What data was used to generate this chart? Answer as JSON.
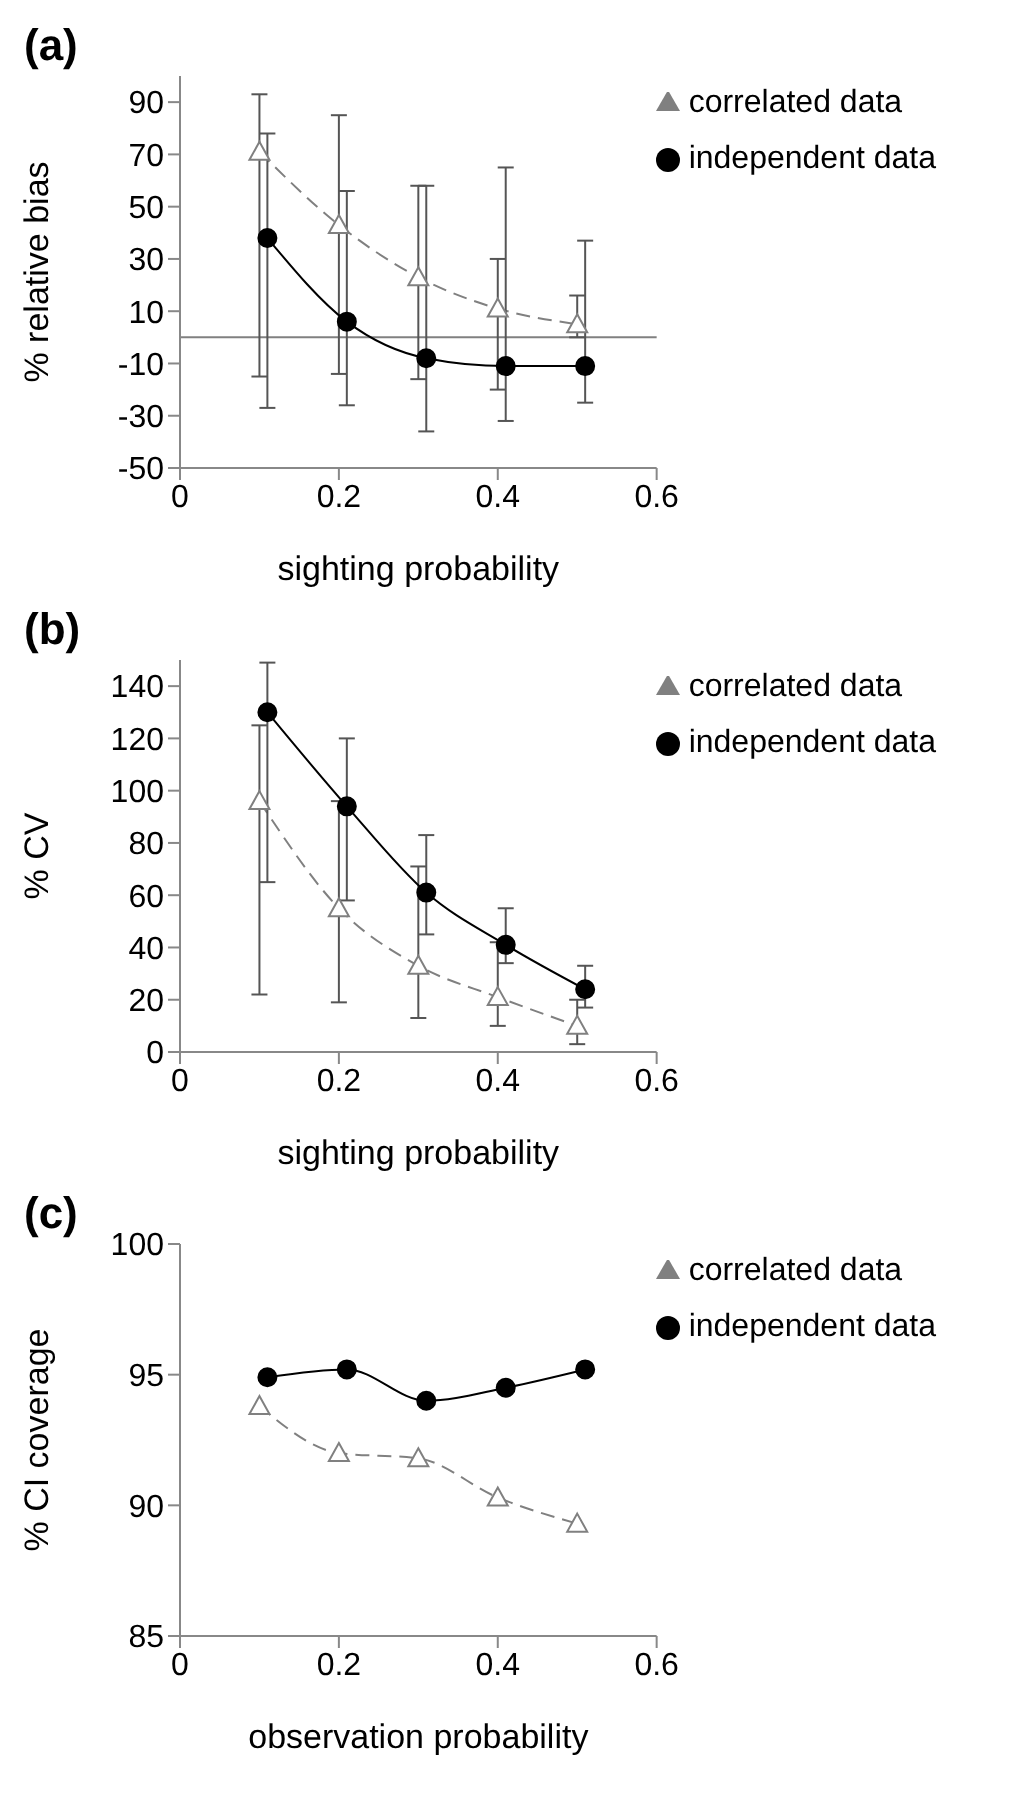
{
  "chart_data": [
    {
      "type": "line",
      "title": "(a)",
      "xlabel": "sighting probability",
      "ylabel": "% relative bias",
      "xlim": [
        0,
        0.6
      ],
      "xticks": [
        0,
        0.2,
        0.4,
        0.6
      ],
      "ylim": [
        -50,
        100
      ],
      "yticks": [
        -50,
        -30,
        -10,
        10,
        30,
        50,
        70,
        90
      ],
      "grid": false,
      "legend": "top right",
      "ref_lines": [
        {
          "axis": "y",
          "value": 0,
          "color": "#808080"
        }
      ],
      "series": [
        {
          "name": "correlated data",
          "color": "#808080",
          "marker": "triangle",
          "line_style": "dashed",
          "x": [
            0.1,
            0.2,
            0.3,
            0.4,
            0.5
          ],
          "values": [
            71,
            43,
            23,
            11,
            5
          ],
          "errors": [
            [
              -15,
              93
            ],
            [
              -14,
              85
            ],
            [
              -16,
              58
            ],
            [
              -20,
              30
            ],
            [
              0,
              16
            ]
          ]
        },
        {
          "name": "independent data",
          "color": "#000000",
          "marker": "circle",
          "line_style": "solid",
          "x": [
            0.11,
            0.21,
            0.31,
            0.41,
            0.51
          ],
          "values": [
            38,
            6,
            -8,
            -11,
            -11
          ],
          "errors": [
            [
              -27,
              78
            ],
            [
              -26,
              56
            ],
            [
              -36,
              58
            ],
            [
              -32,
              65
            ],
            [
              -25,
              37
            ]
          ]
        }
      ]
    },
    {
      "type": "line",
      "title": "(b)",
      "xlabel": "sighting probability",
      "ylabel": "% CV",
      "xlim": [
        0,
        0.6
      ],
      "xticks": [
        0,
        0.2,
        0.4,
        0.6
      ],
      "ylim": [
        0,
        150
      ],
      "yticks": [
        0,
        20,
        40,
        60,
        80,
        100,
        120,
        140
      ],
      "grid": false,
      "legend": "top right",
      "series": [
        {
          "name": "correlated data",
          "color": "#808080",
          "marker": "triangle",
          "line_style": "dashed",
          "x": [
            0.1,
            0.2,
            0.3,
            0.4,
            0.5
          ],
          "values": [
            96,
            55,
            33,
            21,
            10
          ],
          "errors": [
            [
              22,
              125
            ],
            [
              19,
              96
            ],
            [
              13,
              71
            ],
            [
              10,
              42
            ],
            [
              3,
              20
            ]
          ]
        },
        {
          "name": "independent data",
          "color": "#000000",
          "marker": "circle",
          "line_style": "solid",
          "x": [
            0.11,
            0.21,
            0.31,
            0.41,
            0.51
          ],
          "values": [
            130,
            94,
            61,
            41,
            24
          ],
          "errors": [
            [
              65,
              149
            ],
            [
              58,
              120
            ],
            [
              45,
              83
            ],
            [
              34,
              55
            ],
            [
              17,
              33
            ]
          ]
        }
      ]
    },
    {
      "type": "line",
      "title": "(c)",
      "xlabel": "observation probability",
      "ylabel": "% CI coverage",
      "xlim": [
        0,
        0.6
      ],
      "xticks": [
        0,
        0.2,
        0.4,
        0.6
      ],
      "ylim": [
        85,
        100
      ],
      "yticks": [
        85,
        90,
        95,
        100
      ],
      "grid": false,
      "legend": "top right",
      "series": [
        {
          "name": "correlated data",
          "color": "#808080",
          "marker": "triangle",
          "line_style": "dashed",
          "x": [
            0.1,
            0.2,
            0.3,
            0.4,
            0.5
          ],
          "values": [
            93.8,
            92.0,
            91.8,
            90.3,
            89.3
          ]
        },
        {
          "name": "independent data",
          "color": "#000000",
          "marker": "circle",
          "line_style": "solid",
          "x": [
            0.11,
            0.21,
            0.31,
            0.41,
            0.51
          ],
          "values": [
            94.9,
            95.2,
            94.0,
            94.5,
            95.2
          ]
        }
      ]
    }
  ]
}
